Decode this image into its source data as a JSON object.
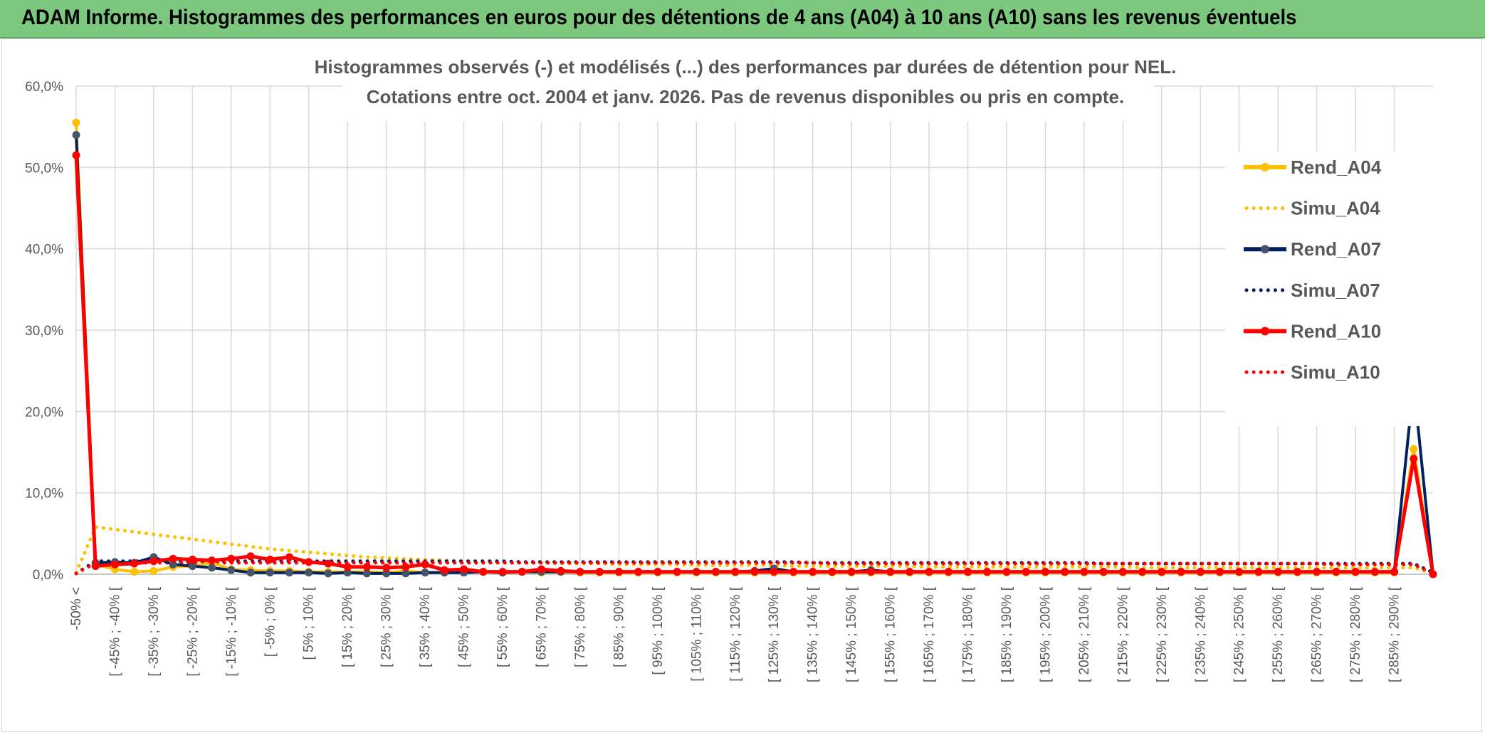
{
  "header": {
    "banner_title": "ADAM Informe. Histogrammes des performances en euros pour des détentions de 4 ans (A04) à 10 ans (A10) sans les revenus éventuels"
  },
  "chart_data": {
    "type": "line",
    "title": "Histogrammes observés (-) et modélisés (...) des performances par durées de détention pour NEL.",
    "subtitle": "Cotations entre oct. 2004 et janv. 2026. Pas de revenus disponibles ou pris en compte.",
    "xlabel": "",
    "ylabel": "",
    "ylim": [
      0,
      60
    ],
    "y_ticks": [
      "0,0%",
      "10,0%",
      "20,0%",
      "30,0%",
      "40,0%",
      "50,0%",
      "60,0%"
    ],
    "grid": true,
    "legend_position": "right",
    "categories": [
      "-50% <",
      "[ -50% ; -45% [",
      "[ -45% ; -40% [",
      "[ -40% ; -35% [",
      "[ -35% ; -30% [",
      "[ -30% ; -25% [",
      "[ -25% ; -20% [",
      "[ -20% ; -15% [",
      "[ -15% ; -10% [",
      "[ -10% ; -5% [",
      "[ -5% ; 0% [",
      "[ 0% ; 5% [",
      "[ 5% ; 10% [",
      "[ 10% ; 15% [",
      "[ 15% ; 20% [",
      "[ 20% ; 25% [",
      "[ 25% ; 30% [",
      "[ 30% ; 35% [",
      "[ 35% ; 40% [",
      "[ 40% ; 45% [",
      "[ 45% ; 50% [",
      "[ 50% ; 55% [",
      "[ 55% ; 60% [",
      "[ 60% ; 65% [",
      "[ 65% ; 70% [",
      "[ 70% ; 75% [",
      "[ 75% ; 80% [",
      "[ 80% ; 85% [",
      "[ 85% ; 90% [",
      "[ 90% ; 95% [",
      "[ 95% ; 100% [",
      "[ 100% ; 105% [",
      "[ 105% ; 110% [",
      "[ 110% ; 115% [",
      "[ 115% ; 120% [",
      "[ 120% ; 125% [",
      "[ 125% ; 130% [",
      "[ 130% ; 135% [",
      "[ 135% ; 140% [",
      "[ 140% ; 145% [",
      "[ 145% ; 150% [",
      "[ 150% ; 155% [",
      "[ 155% ; 160% [",
      "[ 160% ; 165% [",
      "[ 165% ; 170% [",
      "[ 170% ; 175% [",
      "[ 175% ; 180% [",
      "[ 180% ; 185% [",
      "[ 185% ; 190% [",
      "[ 190% ; 195% [",
      "[ 195% ; 200% [",
      "[ 200% ; 205% [",
      "[ 205% ; 210% [",
      "[ 210% ; 215% [",
      "[ 215% ; 220% [",
      "[ 220% ; 225% [",
      "[ 225% ; 230% [",
      "[ 230% ; 235% [",
      "[ 235% ; 240% [",
      "[ 240% ; 245% [",
      "[ 245% ; 250% [",
      "[ 250% ; 255% [",
      "[ 255% ; 260% [",
      "[ 260% ; 265% [",
      "[ 265% ; 270% [",
      "[ 270% ; 275% [",
      "[ 275% ; 280% [",
      "[ 280% ; 285% [",
      "[ 285% ; 290% [",
      "[ 290% ; 295% [",
      "> 295%"
    ],
    "shown_x_labels": [
      "-50% <",
      "[ -45% ; -40% [",
      "[ -35% ; -30% [",
      "[ -25% ; -20% [",
      "[ -15% ; -10% [",
      "[ -5% ; 0% [",
      "[ 5% ; 10% [",
      "[ 15% ; 20% [",
      "[ 25% ; 30% [",
      "[ 35% ; 40% [",
      "[ 45% ; 50% [",
      "[ 55% ; 60% [",
      "[ 65% ; 70% [",
      "[ 75% ; 80% [",
      "[ 85% ; 90% [",
      "[ 95% ; 100% [",
      "[ 105% ; 110% [",
      "[ 115% ; 120% [",
      "[ 125% ; 130% [",
      "[ 135% ; 140% [",
      "[ 145% ; 150% [",
      "[ 155% ; 160% [",
      "[ 165% ; 170% [",
      "[ 175% ; 180% [",
      "[ 185% ; 190% [",
      "[ 195% ; 200% [",
      "[ 205% ; 210% [",
      "[ 215% ; 220% [",
      "[ 225% ; 230% [",
      "[ 235% ; 240% [",
      "[ 245% ; 250% [",
      "[ 255% ; 260% [",
      "[ 265% ; 270% [",
      "[ 275% ; 280% [",
      "[ 285% ; 290% ["
    ],
    "series": [
      {
        "name": "Rend_A04",
        "style": "solid",
        "color": "#ffc000",
        "values": [
          55.5,
          1.2,
          0.6,
          0.3,
          0.4,
          0.9,
          1.0,
          1.4,
          0.6,
          0.5,
          0.4,
          0.4,
          0.3,
          0.3,
          0.3,
          0.3,
          0.2,
          0.4,
          0.2,
          0.2,
          0.3,
          0.3,
          0.2,
          0.3,
          0.2,
          0.3,
          0.2,
          0.2,
          0.2,
          0.2,
          0.2,
          0.2,
          0.2,
          0.2,
          0.2,
          0.2,
          0.2,
          0.2,
          0.2,
          0.2,
          0.2,
          0.2,
          0.2,
          0.2,
          0.2,
          0.2,
          0.2,
          0.2,
          0.2,
          0.2,
          0.2,
          0.2,
          0.2,
          0.2,
          0.2,
          0.2,
          0.2,
          0.2,
          0.2,
          0.2,
          0.2,
          0.2,
          0.2,
          0.2,
          0.2,
          0.2,
          0.2,
          0.2,
          0.2,
          15.4,
          0.0
        ]
      },
      {
        "name": "Simu_A04",
        "style": "dotted",
        "color": "#ffc000",
        "values": [
          0.2,
          5.8,
          5.5,
          5.2,
          4.9,
          4.6,
          4.3,
          4.0,
          3.7,
          3.4,
          3.1,
          2.9,
          2.7,
          2.5,
          2.3,
          2.1,
          2.0,
          1.9,
          1.8,
          1.7,
          1.6,
          1.5,
          1.5,
          1.4,
          1.4,
          1.3,
          1.3,
          1.3,
          1.2,
          1.2,
          1.2,
          1.2,
          1.1,
          1.1,
          1.1,
          1.1,
          1.1,
          1.0,
          1.0,
          1.0,
          1.0,
          1.0,
          1.0,
          1.0,
          0.9,
          0.9,
          0.9,
          0.9,
          0.9,
          0.9,
          0.9,
          0.9,
          0.9,
          0.9,
          0.9,
          0.8,
          0.8,
          0.8,
          0.8,
          0.8,
          0.8,
          0.8,
          0.8,
          0.8,
          0.8,
          0.8,
          0.8,
          0.8,
          0.8,
          0.8,
          0.1
        ]
      },
      {
        "name": "Rend_A07",
        "style": "solid",
        "color": "#002060",
        "values": [
          54.0,
          1.4,
          1.5,
          1.4,
          2.1,
          1.2,
          1.0,
          0.8,
          0.5,
          0.2,
          0.2,
          0.2,
          0.2,
          0.1,
          0.2,
          0.1,
          0.1,
          0.1,
          0.2,
          0.2,
          0.2,
          0.3,
          0.2,
          0.3,
          0.3,
          0.3,
          0.3,
          0.3,
          0.3,
          0.3,
          0.3,
          0.3,
          0.3,
          0.3,
          0.3,
          0.4,
          0.7,
          0.3,
          0.3,
          0.3,
          0.3,
          0.5,
          0.3,
          0.3,
          0.3,
          0.3,
          0.3,
          0.3,
          0.3,
          0.3,
          0.3,
          0.3,
          0.3,
          0.3,
          0.3,
          0.3,
          0.3,
          0.3,
          0.3,
          0.3,
          0.3,
          0.3,
          0.3,
          0.3,
          0.3,
          0.3,
          0.3,
          0.3,
          0.3,
          23.4,
          0.0
        ]
      },
      {
        "name": "Simu_A07",
        "style": "dotted",
        "color": "#002060",
        "values": [
          0.1,
          1.6,
          1.6,
          1.6,
          1.6,
          1.6,
          1.6,
          1.6,
          1.6,
          1.6,
          1.6,
          1.6,
          1.6,
          1.6,
          1.6,
          1.6,
          1.6,
          1.6,
          1.6,
          1.6,
          1.6,
          1.6,
          1.6,
          1.5,
          1.5,
          1.5,
          1.5,
          1.5,
          1.5,
          1.5,
          1.5,
          1.5,
          1.5,
          1.5,
          1.5,
          1.5,
          1.5,
          1.5,
          1.4,
          1.4,
          1.4,
          1.4,
          1.4,
          1.4,
          1.4,
          1.4,
          1.4,
          1.4,
          1.4,
          1.4,
          1.4,
          1.4,
          1.4,
          1.3,
          1.3,
          1.3,
          1.3,
          1.3,
          1.3,
          1.3,
          1.3,
          1.3,
          1.3,
          1.3,
          1.3,
          1.3,
          1.3,
          1.3,
          1.3,
          1.3,
          0.2
        ]
      },
      {
        "name": "Rend_A10",
        "style": "solid",
        "color": "#ff0000",
        "values": [
          51.5,
          1.0,
          1.2,
          1.3,
          1.6,
          1.9,
          1.8,
          1.7,
          1.9,
          2.2,
          1.8,
          2.1,
          1.5,
          1.3,
          0.9,
          0.9,
          0.8,
          0.9,
          1.2,
          0.5,
          0.6,
          0.3,
          0.3,
          0.3,
          0.6,
          0.4,
          0.3,
          0.3,
          0.3,
          0.3,
          0.3,
          0.3,
          0.3,
          0.3,
          0.3,
          0.3,
          0.3,
          0.3,
          0.3,
          0.3,
          0.3,
          0.3,
          0.3,
          0.3,
          0.3,
          0.3,
          0.3,
          0.3,
          0.3,
          0.3,
          0.3,
          0.3,
          0.3,
          0.3,
          0.3,
          0.3,
          0.3,
          0.3,
          0.3,
          0.3,
          0.3,
          0.3,
          0.3,
          0.3,
          0.3,
          0.3,
          0.3,
          0.3,
          0.3,
          14.2,
          0.0
        ]
      },
      {
        "name": "Simu_A10",
        "style": "dotted",
        "color": "#ff0000",
        "values": [
          0.1,
          1.4,
          1.4,
          1.4,
          1.4,
          1.4,
          1.4,
          1.4,
          1.4,
          1.4,
          1.4,
          1.4,
          1.4,
          1.4,
          1.4,
          1.4,
          1.4,
          1.4,
          1.4,
          1.4,
          1.4,
          1.4,
          1.4,
          1.4,
          1.4,
          1.4,
          1.4,
          1.4,
          1.4,
          1.4,
          1.4,
          1.4,
          1.4,
          1.4,
          1.4,
          1.4,
          1.4,
          1.4,
          1.4,
          1.3,
          1.3,
          1.3,
          1.3,
          1.3,
          1.3,
          1.3,
          1.3,
          1.3,
          1.3,
          1.3,
          1.3,
          1.3,
          1.3,
          1.3,
          1.3,
          1.3,
          1.3,
          1.3,
          1.3,
          1.3,
          1.3,
          1.3,
          1.3,
          1.3,
          1.3,
          1.2,
          1.2,
          1.2,
          1.2,
          1.2,
          0.1
        ]
      }
    ]
  }
}
